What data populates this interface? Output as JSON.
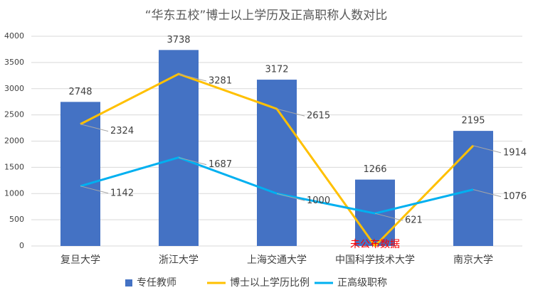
{
  "chart_data": {
    "type": "bar-line",
    "title": "“华东五校”博士以上学历及正高职称人数对比",
    "categories": [
      "复旦大学",
      "浙江大学",
      "上海交通大学",
      "中国科学技术大学",
      "南京大学"
    ],
    "series": [
      {
        "name": "专任教师",
        "type": "bar",
        "color": "#4472c4",
        "values": [
          2748,
          3738,
          3172,
          1266,
          2195
        ]
      },
      {
        "name": "博士以上学历比例",
        "type": "line",
        "color": "#ffc000",
        "values": [
          2324,
          3281,
          2615,
          0,
          1914
        ]
      },
      {
        "name": "正高级职称",
        "type": "line",
        "color": "#00b0f0",
        "values": [
          1142,
          1687,
          1000,
          621,
          1076
        ]
      }
    ],
    "annotations": [
      {
        "text": "未公布数据",
        "series": 1,
        "index": 3,
        "color": "#ff0000"
      }
    ],
    "ylim": [
      0,
      4000
    ],
    "yticks": [
      0,
      500,
      1000,
      1500,
      2000,
      2500,
      3000,
      3500,
      4000
    ],
    "grid": true,
    "legend": "bottom"
  }
}
